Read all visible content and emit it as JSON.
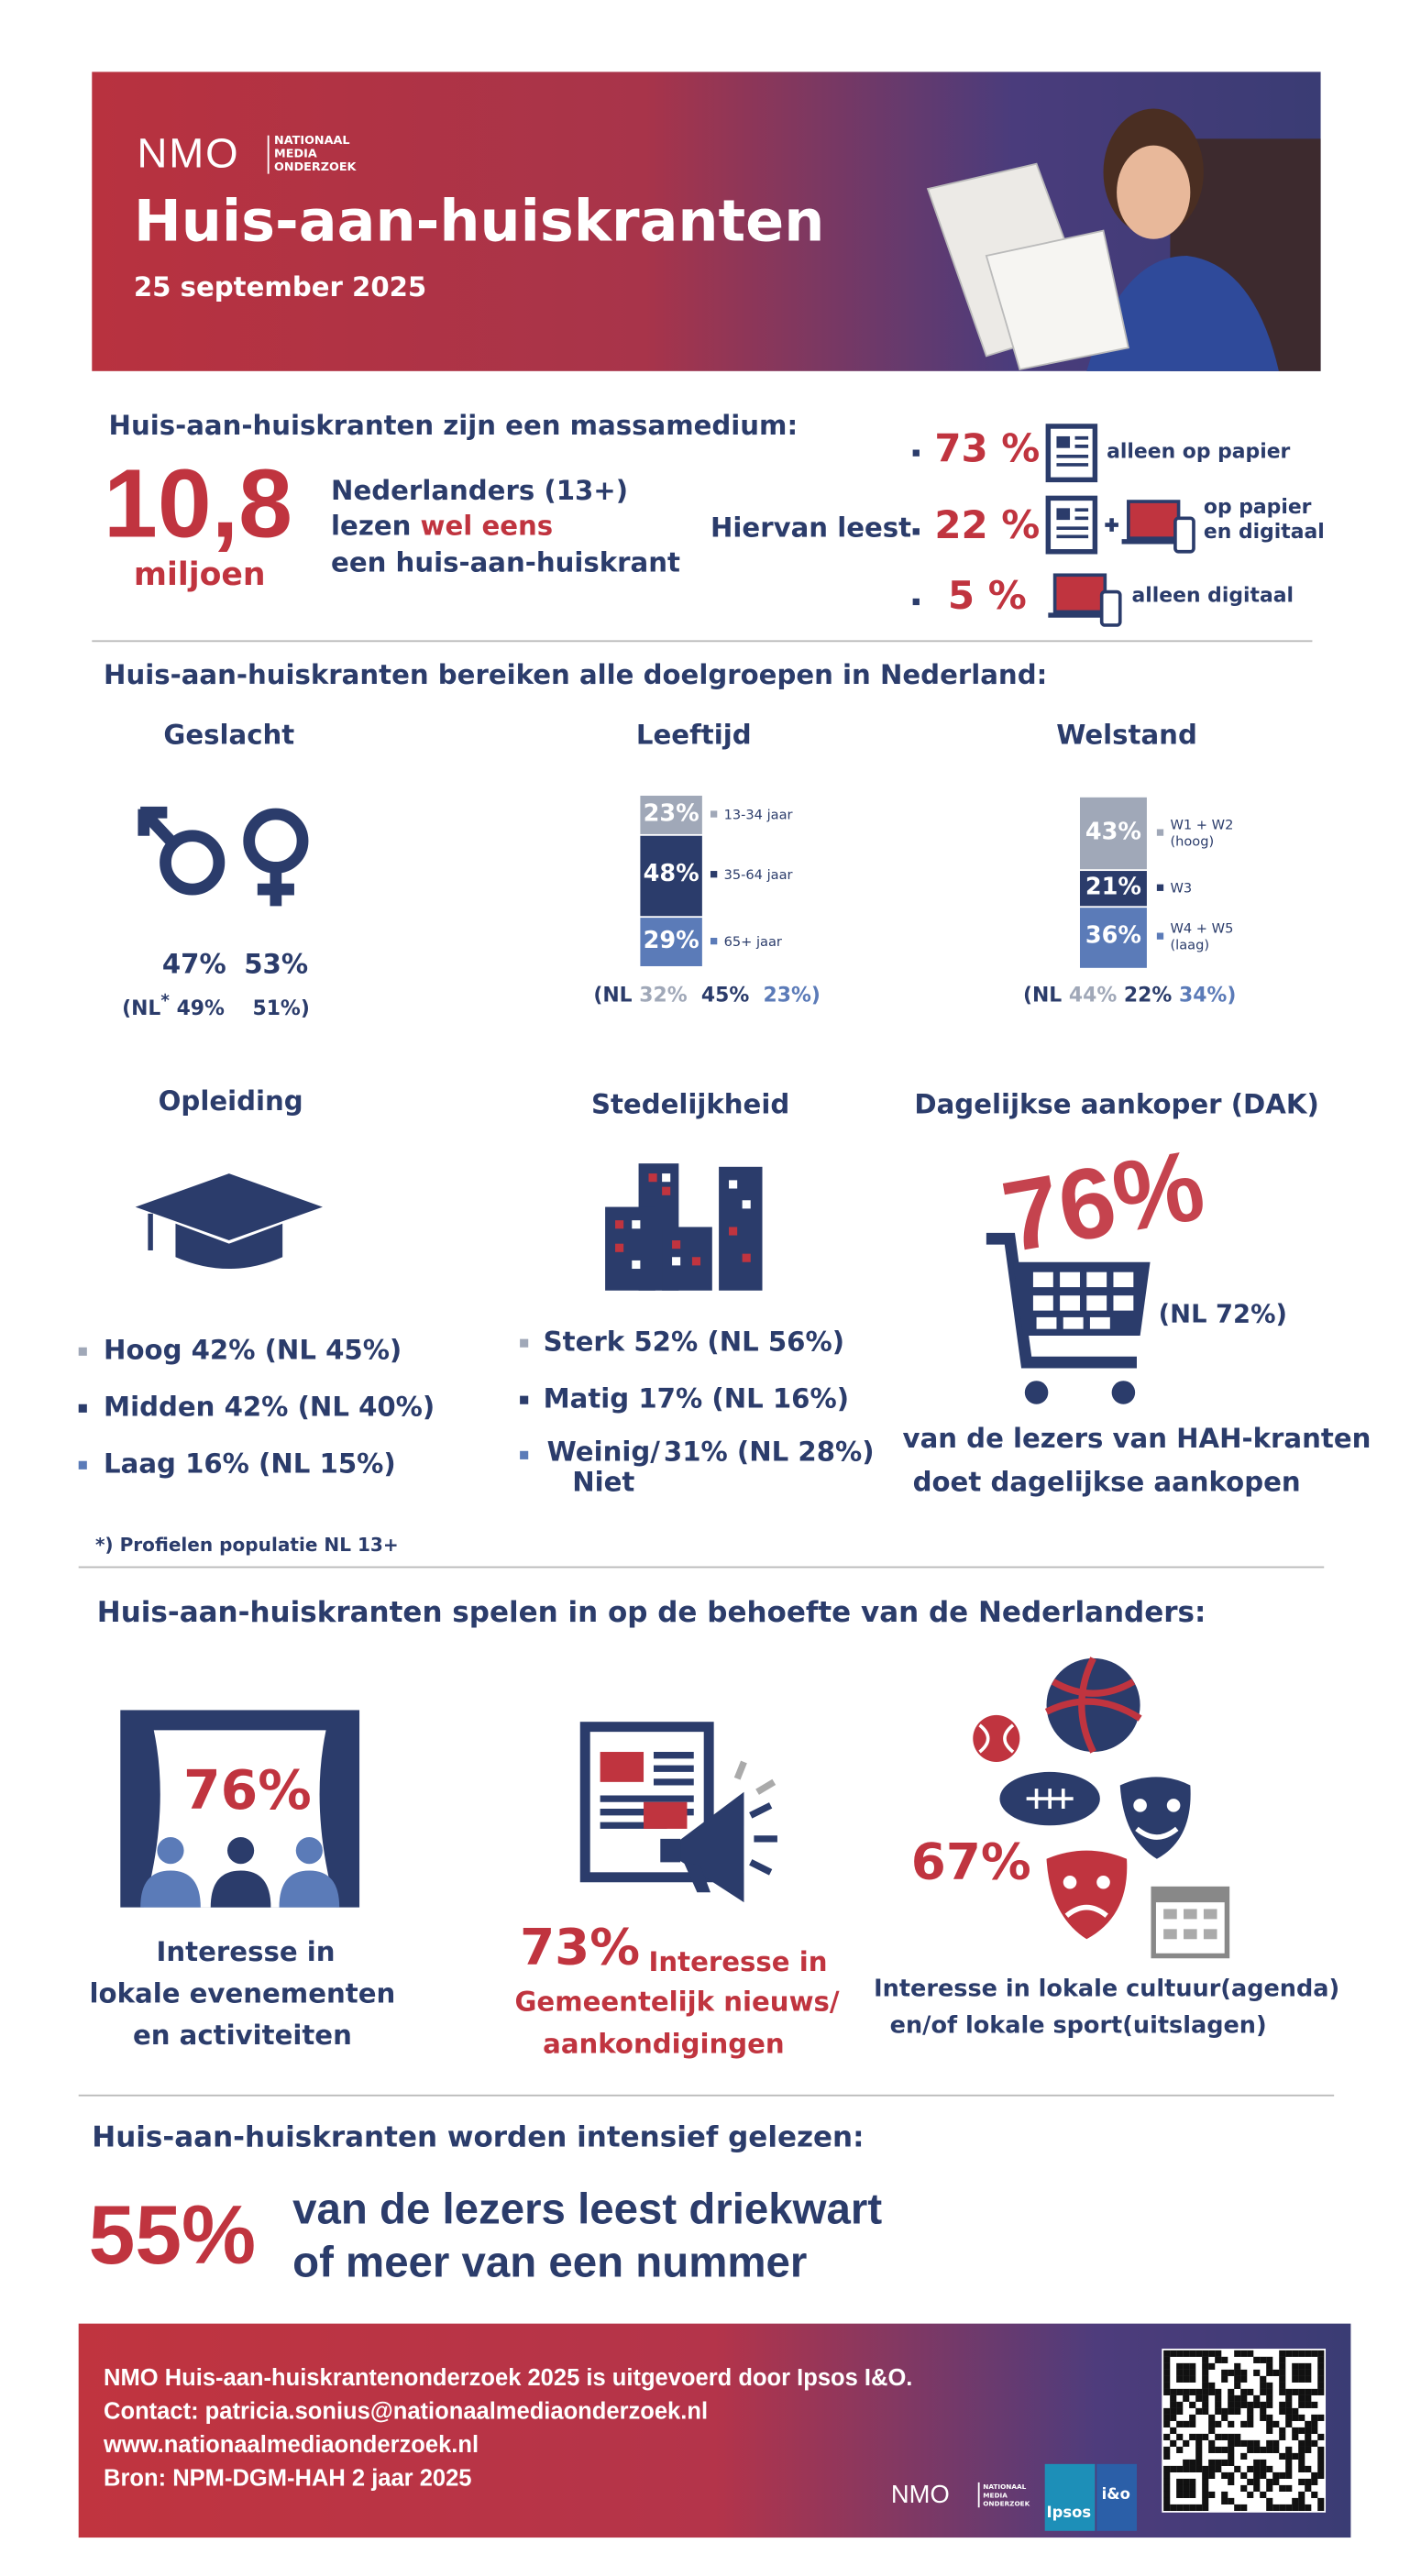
{
  "header": {
    "logo": "NMO",
    "logo_sub": [
      "NATIONAAL",
      "MEDIA",
      "ONDERZOEK"
    ],
    "title": "Huis-aan-huiskranten",
    "date": "25 september 2025"
  },
  "reach": {
    "heading": "Huis-aan-huiskranten zijn een massamedium:",
    "number": "10,8",
    "unit": "miljoen",
    "line1": "Nederlanders (13+)",
    "line2": "lezen",
    "line2_highlight": "wel eens",
    "line3": "een huis-aan-huiskrant",
    "split_label": "Hiervan leest",
    "rows": [
      {
        "value": "73 %",
        "label": "alleen op papier"
      },
      {
        "value": "22 %",
        "label": "op papier en digitaal"
      },
      {
        "value": "5 %",
        "label": "alleen digitaal"
      }
    ]
  },
  "groups": {
    "heading": "Huis-aan-huiskranten bereiken alle doelgroepen in Nederland:",
    "gender": {
      "title": "Geslacht",
      "values": [
        "47%",
        "53%"
      ],
      "nl_prefix": "(NL",
      "nl_mark": "*",
      "nl_values": [
        "49%",
        "51%)"
      ]
    },
    "age": {
      "title": "Leeftijd",
      "segments": [
        {
          "value": 23,
          "label": "23%",
          "name": "13-34 jaar"
        },
        {
          "value": 48,
          "label": "48%",
          "name": "35-64 jaar"
        },
        {
          "value": 29,
          "label": "29%",
          "name": "65+ jaar"
        }
      ],
      "nl_prefix": "(NL",
      "nl_values": [
        "32%",
        "45%",
        "23%)"
      ]
    },
    "wealth": {
      "title": "Welstand",
      "segments": [
        {
          "value": 43,
          "label": "43%",
          "name": "W1 + W2",
          "sub": "(hoog)"
        },
        {
          "value": 21,
          "label": "21%",
          "name": "W3"
        },
        {
          "value": 36,
          "label": "36%",
          "name": "W4 + W5",
          "sub": "(laag)"
        }
      ],
      "nl_prefix": "(NL",
      "nl_values": [
        "44%",
        "22%",
        "34%)"
      ]
    },
    "education": {
      "title": "Opleiding",
      "items": [
        "Hoog 42% (NL 45%)",
        "Midden 42% (NL 40%)",
        "Laag 16% (NL 15%)"
      ]
    },
    "urban": {
      "title": "Stedelijkheid",
      "items": [
        {
          "label": "Sterk",
          "value": "52% (NL 56%)"
        },
        {
          "label": "Matig",
          "value": "17% (NL 16%)"
        },
        {
          "label": "Weinig/ Niet",
          "value": "31% (NL 28%)"
        }
      ]
    },
    "dak": {
      "title": "Dagelijkse aankoper (DAK)",
      "value": "76%",
      "nl": "(NL 72%)",
      "lines": [
        "van de lezers van HAH-kranten",
        "doet dagelijkse aankopen"
      ]
    },
    "footnote": "*) Profielen populatie NL 13+"
  },
  "needs": {
    "heading": "Huis-aan-huiskranten spelen in op de behoefte van de Nederlanders:",
    "events": {
      "value": "76%",
      "lines": [
        "Interesse in",
        "lokale evenementen",
        "en activiteiten"
      ]
    },
    "news": {
      "value": "73%",
      "lines": [
        "Interesse in",
        "Gemeentelijk nieuws/",
        "aankondigingen"
      ]
    },
    "culture": {
      "value": "67%",
      "lines": [
        "Interesse in lokale cultuur(agenda)",
        "en/of lokale sport(uitslagen)"
      ]
    }
  },
  "intensity": {
    "heading": "Huis-aan-huiskranten worden intensief gelezen:",
    "value": "55%",
    "lines": [
      "van de lezers leest driekwart",
      "of meer van een nummer"
    ]
  },
  "footer": {
    "lines": [
      "NMO Huis-aan-huiskrantenonderzoek 2025 is uitgevoerd door Ipsos I&O.",
      "Contact: patricia.sonius@nationaalmediaonderzoek.nl",
      "www.nationaalmediaonderzoek.nl",
      "Bron: NPM-DGM-HAH 2 jaar 2025"
    ],
    "logo": "NMO",
    "logo_sub": [
      "NATIONAAL",
      "MEDIA",
      "ONDERZOEK"
    ],
    "partner": "Ipsos",
    "partner2": "i&o"
  }
}
